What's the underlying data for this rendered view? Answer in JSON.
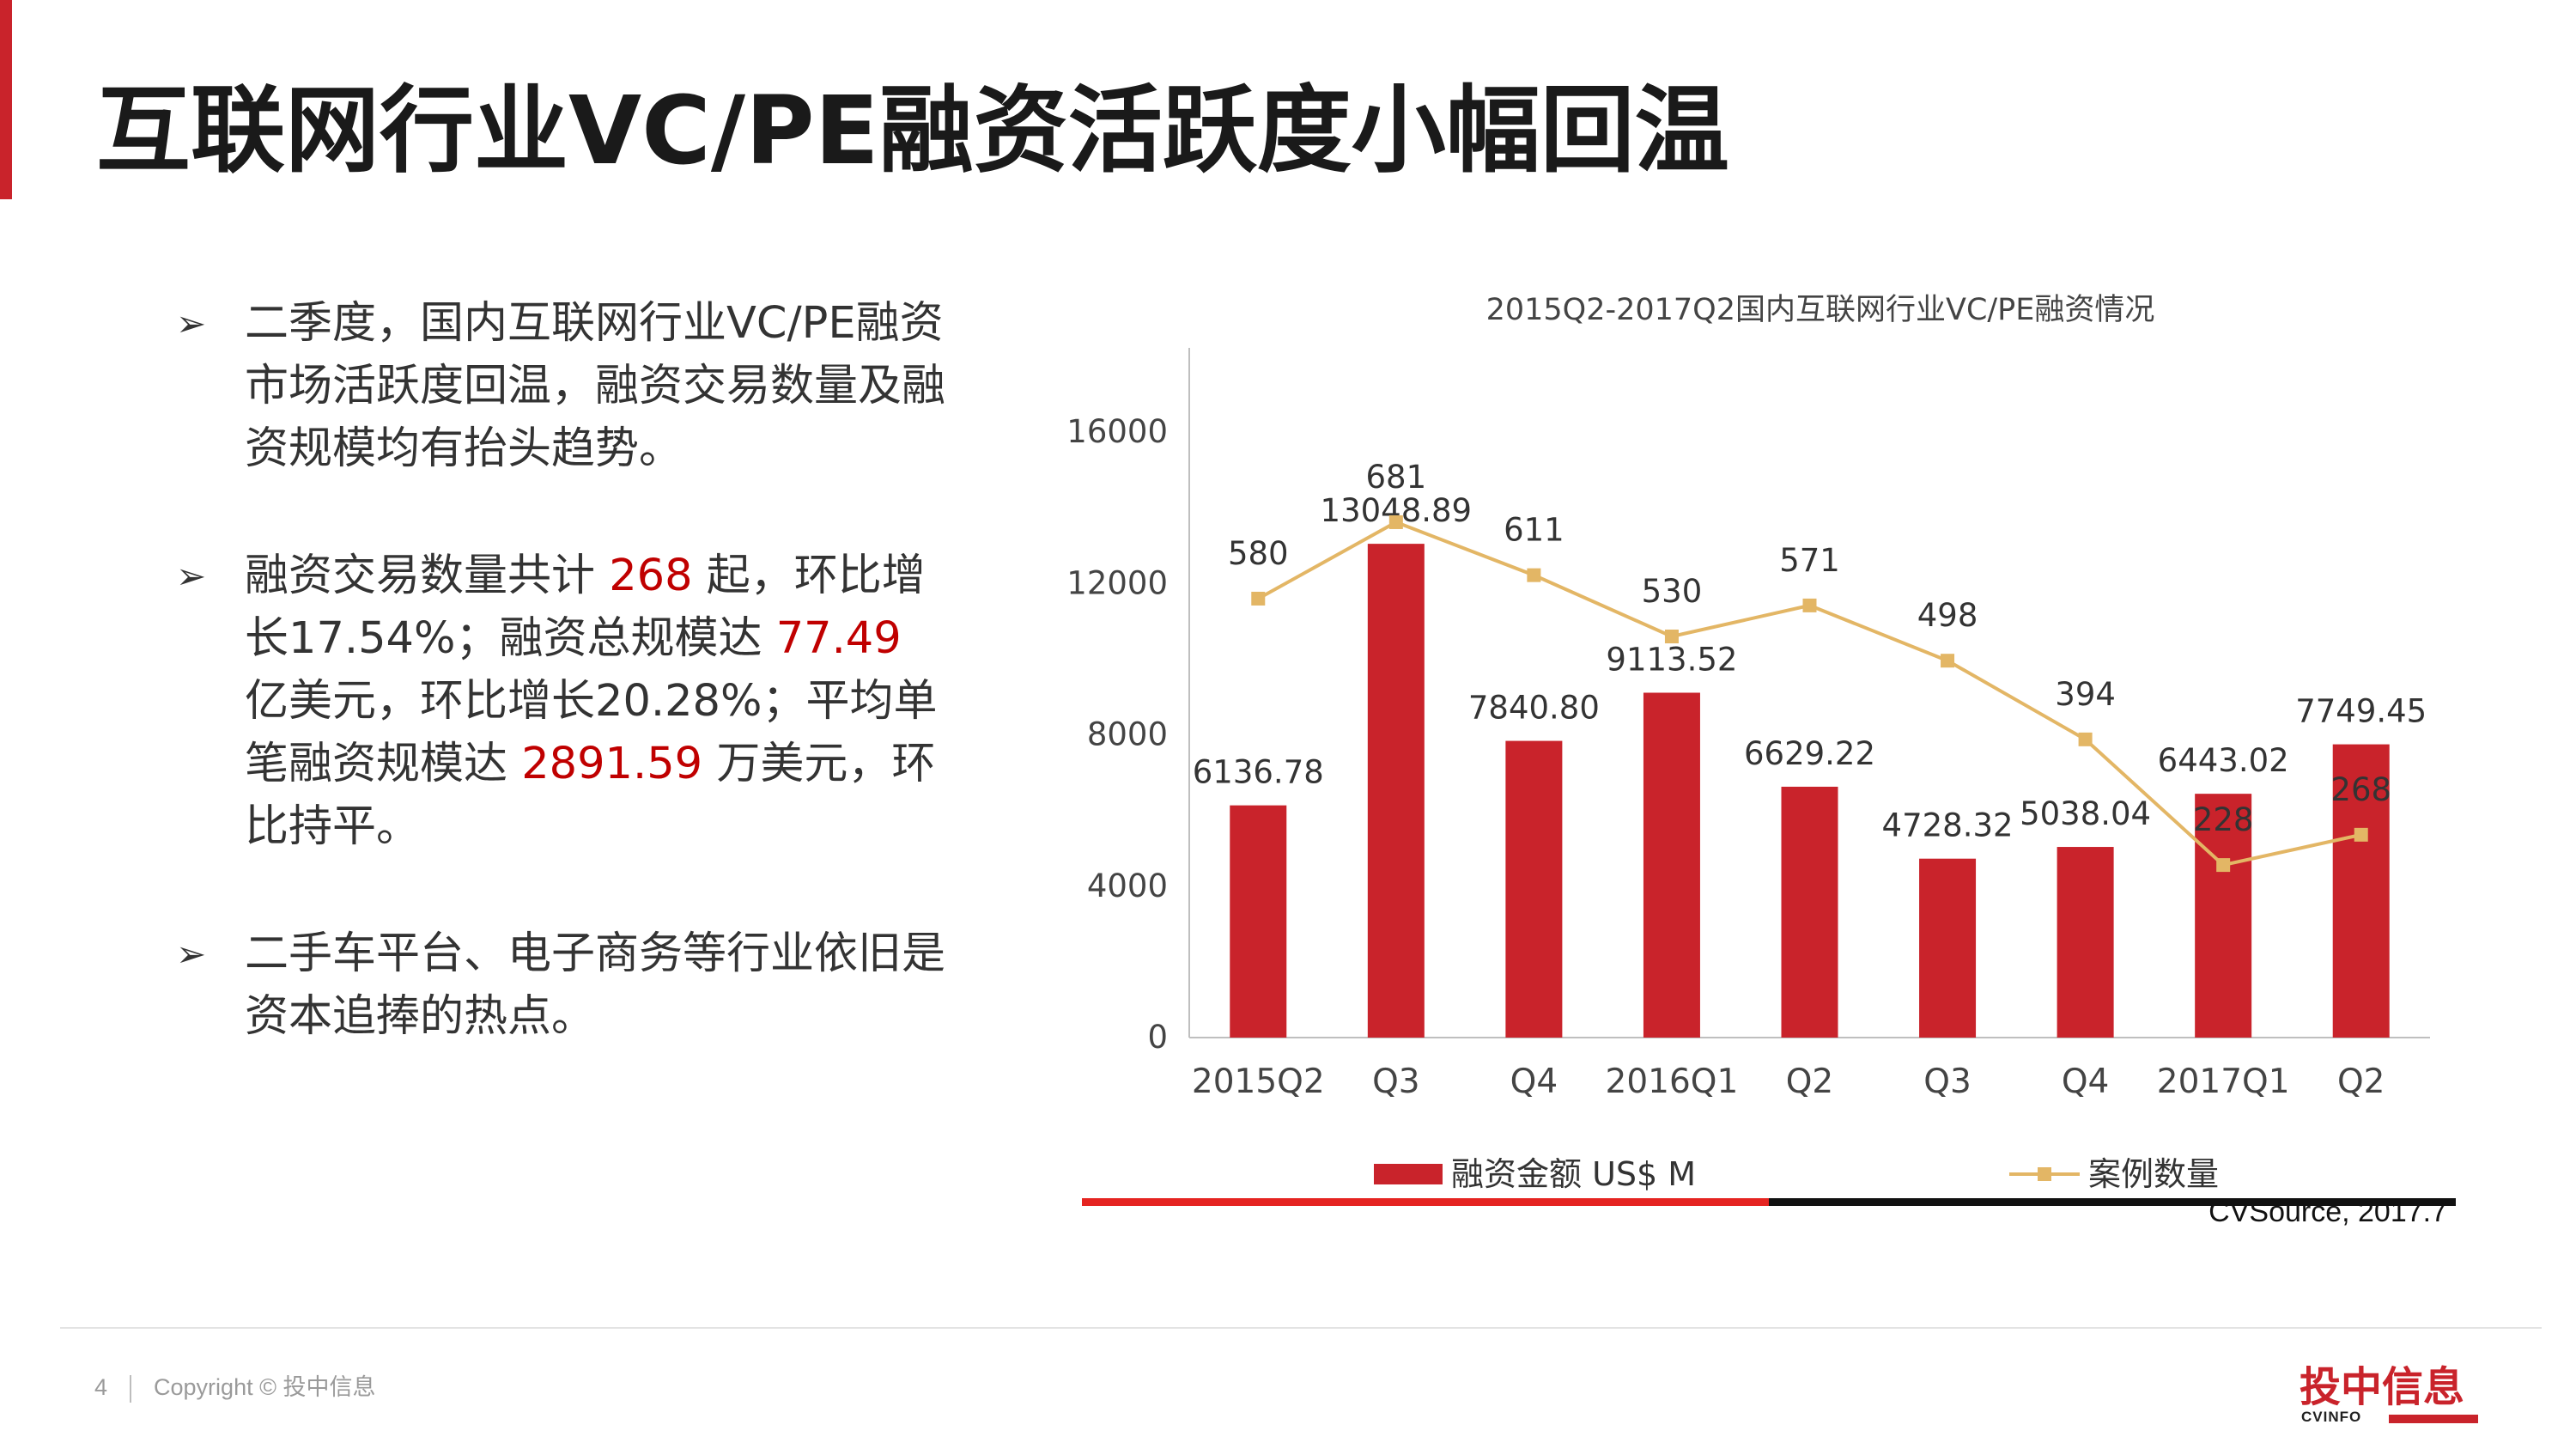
{
  "slide": {
    "title": "互联网行业VC/PE融资活跃度小幅回温",
    "page_number": "4",
    "copyright": "Copyright © 投中信息",
    "source": "CVSource, 2017.7",
    "logo_text": "投中信息",
    "logo_sub": "CVINFO"
  },
  "bullets": [
    {
      "segments": [
        {
          "text": "二季度，国内互联网行业VC/PE融资市场活跃度回温，融资交易数量及融资规模均有抬头趋势。"
        }
      ]
    },
    {
      "segments": [
        {
          "text": "融资交易数量共计 "
        },
        {
          "text": "268",
          "highlight": true
        },
        {
          "text": " 起，环比增长17.54%；融资总规模达 "
        },
        {
          "text": "77.49",
          "highlight": true
        },
        {
          "text": " 亿美元，环比增长20.28%；平均单笔融资规模达 "
        },
        {
          "text": "2891.59",
          "highlight": true
        },
        {
          "text": " 万美元，环比持平。"
        }
      ]
    },
    {
      "segments": [
        {
          "text": "二手车平台、电子商务等行业依旧是资本追捧的热点。"
        }
      ]
    }
  ],
  "chart_data": {
    "type": "bar",
    "title": "2015Q2-2017Q2国内互联网行业VC/PE融资情况",
    "categories": [
      "2015Q2",
      "Q3",
      "Q4",
      "2016Q1",
      "Q2",
      "Q3",
      "Q4",
      "2017Q1",
      "Q2"
    ],
    "series": [
      {
        "name": "融资金额 US$ M",
        "kind": "bar",
        "color": "#c9232b",
        "values": [
          6136.78,
          13048.89,
          7840.8,
          9113.52,
          6629.22,
          4728.32,
          5038.04,
          6443.02,
          7749.45
        ],
        "labels": [
          "6136.78",
          "13048.89",
          "7840.80",
          "9113.52",
          "6629.22",
          "4728.32",
          "5038.04",
          "6443.02",
          "7749.45"
        ]
      },
      {
        "name": "案例数量",
        "kind": "line",
        "color": "#e3b665",
        "values": [
          580,
          681,
          611,
          530,
          571,
          498,
          394,
          228,
          268
        ],
        "labels": [
          "580",
          "681",
          "611",
          "530",
          "571",
          "498",
          "394",
          "228",
          "268"
        ]
      }
    ],
    "y_ticks": [
      "0",
      "4000",
      "8000",
      "12000",
      "16000"
    ],
    "ylim": [
      0,
      18000
    ],
    "line_ylim": [
      0,
      900
    ],
    "legend_position": "bottom",
    "grid": false
  },
  "colors": {
    "accent": "#c9232b",
    "line": "#e3b665"
  }
}
